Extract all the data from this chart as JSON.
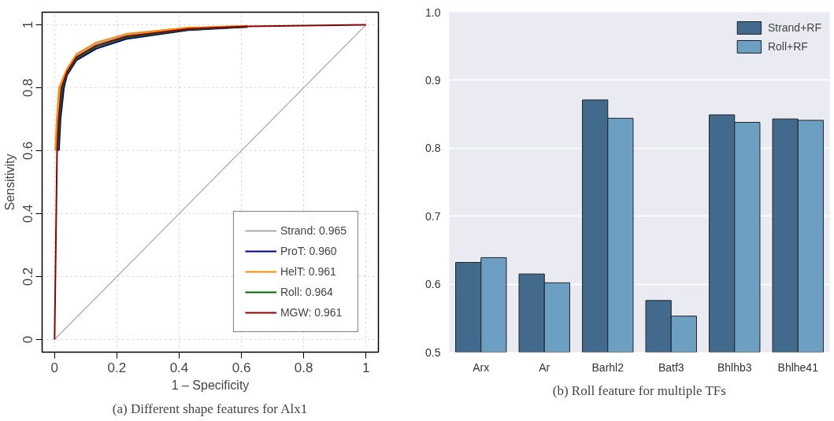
{
  "chart_data": [
    {
      "type": "line",
      "title": "(a) Different shape features for Alx1",
      "xlabel": "1 – Specificity",
      "ylabel": "Sensitivity",
      "xlim": [
        -0.04,
        1.04
      ],
      "ylim": [
        -0.04,
        1.04
      ],
      "xticks": [
        0,
        0.2,
        0.4,
        0.6,
        0.8,
        1
      ],
      "yticks": [
        0,
        0.2,
        0.4,
        0.6,
        0.8,
        1
      ],
      "grid": true,
      "legend": "bottom right",
      "marker": "none",
      "line_style": "solid",
      "series": [
        {
          "color": "#aaaaaa",
          "x": [
            0,
            1
          ],
          "values": [
            0,
            1
          ]
        },
        {
          "name": "Strand: 0.965",
          "color": "#aaaaaa",
          "x": [
            0.005,
            0.01,
            0.018,
            0.04,
            0.07,
            0.134,
            0.23,
            0.43,
            0.62
          ],
          "values": [
            0.6,
            0.7,
            0.8,
            0.855,
            0.902,
            0.939,
            0.967,
            0.989,
            0.996
          ]
        },
        {
          "name": "ProT: 0.960",
          "color": "#00008b",
          "x": [
            0.014,
            0.019,
            0.03,
            0.04,
            0.07,
            0.134,
            0.23,
            0.43,
            0.62
          ],
          "values": [
            0.6,
            0.7,
            0.8,
            0.84,
            0.887,
            0.924,
            0.955,
            0.983,
            0.993
          ]
        },
        {
          "name": "HelT: 0.961",
          "color": "#ff8c00",
          "x": [
            0.002,
            0.007,
            0.014,
            0.04,
            0.07,
            0.134,
            0.23,
            0.43,
            0.62
          ],
          "values": [
            0.6,
            0.7,
            0.8,
            0.86,
            0.907,
            0.944,
            0.971,
            0.991,
            0.997
          ]
        },
        {
          "name": "Roll: 0.964",
          "color": "#006400",
          "x": [
            0.011,
            0.016,
            0.026,
            0.04,
            0.07,
            0.134,
            0.23,
            0.43,
            0.62
          ],
          "values": [
            0.6,
            0.7,
            0.8,
            0.845,
            0.892,
            0.929,
            0.959,
            0.985,
            0.994
          ]
        },
        {
          "name": "MGW: 0.961",
          "color": "#8b0000",
          "x": [
            0,
            0.008,
            0.013,
            0.022,
            0.04,
            0.07,
            0.134,
            0.23,
            0.43,
            0.62,
            1
          ],
          "values": [
            0,
            0.6,
            0.7,
            0.8,
            0.85,
            0.897,
            0.934,
            0.963,
            0.987,
            0.995,
            1
          ]
        }
      ]
    },
    {
      "type": "bar",
      "title": "(b) Roll feature for multiple TFs",
      "categories": [
        "Arx",
        "Ar",
        "Barhl2",
        "Batf3",
        "Bhlhb3",
        "Bhlhe41"
      ],
      "ylim": [
        0.5,
        1.0
      ],
      "yticks": [
        0.5,
        0.6,
        0.7,
        0.8,
        0.9,
        {
          "value": 1.0,
          "label": "1.0"
        }
      ],
      "grid": "y",
      "legend": "top right",
      "series": [
        {
          "name": "Strand+RF",
          "color": "#426a8c",
          "values": [
            0.632,
            0.615,
            0.871,
            0.576,
            0.849,
            0.843
          ]
        },
        {
          "name": "Roll+RF",
          "color": "#6c9fc2",
          "values": [
            0.639,
            0.602,
            0.844,
            0.553,
            0.838,
            0.841
          ]
        }
      ]
    }
  ]
}
